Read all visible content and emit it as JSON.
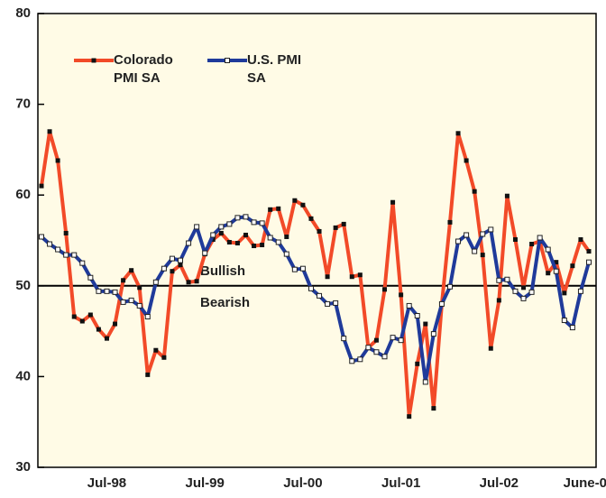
{
  "chart_data": {
    "type": "line",
    "categories": [
      null,
      null,
      null,
      null,
      null,
      null,
      null,
      null,
      "Jul-98",
      null,
      null,
      null,
      null,
      null,
      null,
      null,
      null,
      null,
      null,
      null,
      "Jul-99",
      null,
      null,
      null,
      null,
      null,
      null,
      null,
      null,
      null,
      null,
      null,
      "Jul-00",
      null,
      null,
      null,
      null,
      null,
      null,
      null,
      null,
      null,
      null,
      null,
      "Jul-01",
      null,
      null,
      null,
      null,
      null,
      null,
      null,
      null,
      null,
      null,
      null,
      "Jul-02",
      null,
      null,
      null,
      null,
      null,
      null,
      null,
      null,
      null,
      null,
      "June-03"
    ],
    "series": [
      {
        "name": "Colorado PMI SA",
        "color": "#f24a28",
        "marker_color": "#111111",
        "values": [
          61,
          67,
          63.8,
          55.8,
          46.6,
          46.1,
          46.8,
          45.2,
          44.2,
          45.8,
          50.6,
          51.7,
          49.8,
          40.2,
          42.9,
          42.1,
          51.6,
          52.3,
          50.4,
          50.5,
          53.5,
          55.1,
          55.8,
          54.8,
          54.7,
          55.6,
          54.4,
          54.5,
          58.4,
          58.5,
          55.4,
          59.4,
          58.9,
          57.4,
          56.0,
          51.0,
          56.4,
          56.8,
          51.0,
          51.2,
          43.2,
          44.0,
          49.6,
          59.2,
          49.0,
          35.6,
          41.4,
          45.8,
          36.5,
          48.0,
          57.0,
          66.8,
          63.8,
          60.4,
          53.4,
          43.1,
          48.4,
          59.9,
          55.1,
          49.8,
          54.6,
          54.9,
          51.4,
          52.6,
          49.2,
          52.2,
          55.1,
          53.8
        ]
      },
      {
        "name": "U.S. PMI SA",
        "color": "#1f3a9a",
        "marker_color": "#ffffff",
        "values": [
          55.4,
          54.6,
          54.0,
          53.4,
          53.4,
          52.5,
          50.9,
          49.4,
          49.4,
          49.3,
          48.2,
          48.4,
          47.8,
          46.6,
          50.4,
          51.9,
          53.0,
          52.8,
          54.7,
          56.5,
          53.6,
          55.6,
          56.5,
          56.8,
          57.5,
          57.6,
          57.0,
          56.9,
          55.3,
          54.8,
          53.5,
          51.8,
          51.9,
          49.7,
          48.9,
          48.0,
          48.1,
          44.2,
          41.7,
          41.9,
          43.2,
          42.7,
          42.2,
          44.3,
          44.0,
          47.8,
          46.7,
          39.4,
          44.7,
          48.0,
          49.9,
          54.9,
          55.6,
          53.8,
          55.7,
          56.2,
          50.6,
          50.7,
          49.4,
          48.6,
          49.3,
          55.3,
          54.0,
          51.6,
          46.2,
          45.4,
          49.4,
          52.6
        ]
      }
    ],
    "ylim": [
      30,
      80
    ],
    "yticks": [
      30,
      40,
      50,
      60,
      70,
      80
    ],
    "grid": false,
    "reference_line": 50,
    "annotations": [
      "Bullish",
      "Bearish"
    ],
    "background": "#fffbe6"
  }
}
